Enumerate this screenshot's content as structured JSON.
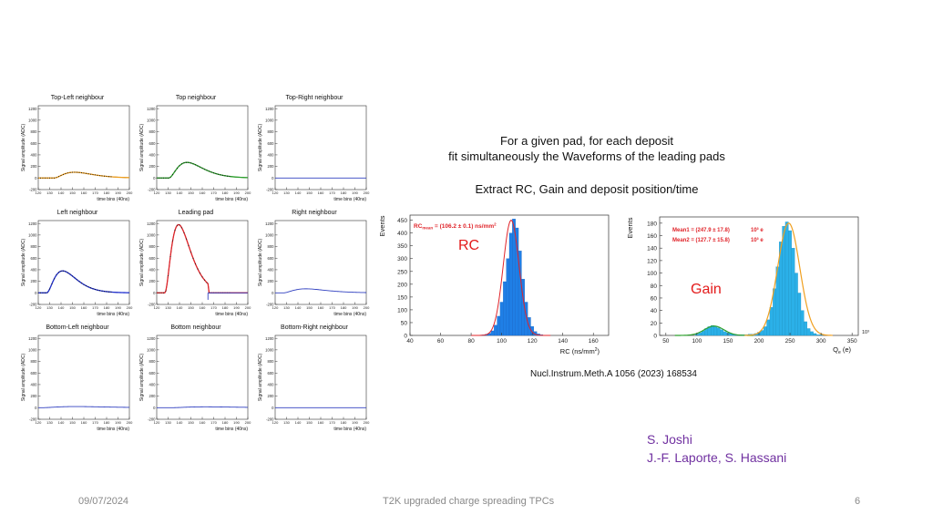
{
  "description": {
    "line1": "For a given pad, for each deposit",
    "line2": "fit simultaneously the Waveforms of the leading pads",
    "line3": "Extract  RC, Gain and deposit position/time"
  },
  "reference": "Nucl.Instrum.Meth.A 1056 (2023) 168534",
  "authors": {
    "line1": "S. Joshi",
    "line2": "J.-F. Laporte, S. Hassani"
  },
  "footer": {
    "date": "09/07/2024",
    "title": "T2K upgraded charge spreading TPCs",
    "page": "6"
  },
  "colors": {
    "rc_fill": "#1f7fe6",
    "gain_fill": "#2bb0e8",
    "fit_red": "#e0242a",
    "fit_orange": "#f0a020",
    "author": "#7030a0"
  },
  "chart_data": [
    {
      "type": "line",
      "layout": "3x3 grid of waveform panels",
      "xlabel": "time bins (40ns)",
      "ylabel": "Signal amplitude (ADC)",
      "xlim": [
        120,
        200
      ],
      "ylim": [
        -200,
        1250
      ],
      "x_ticks": [
        "120",
        "130",
        "140",
        "150",
        "160",
        "170",
        "180",
        "190",
        "200"
      ],
      "y_ticks": [
        "-200",
        "0",
        "200",
        "400",
        "600",
        "800",
        "1000",
        "1200"
      ],
      "panels": [
        {
          "title": "Top-Left neighbour",
          "fit_color": "#f0a020",
          "peak": 100,
          "peak_x": 150,
          "width": 18
        },
        {
          "title": "Top neighbour",
          "fit_color": "#2ca02c",
          "peak": 270,
          "peak_x": 145,
          "width": 16
        },
        {
          "title": "Top-Right neighbour",
          "fit_color": "#3040c0",
          "peak": 0,
          "peak_x": 150,
          "width": 10
        },
        {
          "title": "Left neighbour",
          "fit_color": "#2030d0",
          "peak": 380,
          "peak_x": 140,
          "width": 14
        },
        {
          "title": "Leading pad",
          "fit_color": "#e0242a",
          "peak": 1180,
          "peak_x": 138,
          "width": 12
        },
        {
          "title": "Right neighbour",
          "fit_color": "#3040c0",
          "peak": 70,
          "peak_x": 145,
          "width": 20
        },
        {
          "title": "Bottom-Left neighbour",
          "fit_color": "#3040c0",
          "peak": 20,
          "peak_x": 150,
          "width": 30
        },
        {
          "title": "Bottom neighbour",
          "fit_color": "#3040c0",
          "peak": 15,
          "peak_x": 160,
          "width": 30
        },
        {
          "title": "Bottom-Right neighbour",
          "fit_color": "#3040c0",
          "peak": 0,
          "peak_x": 150,
          "width": 10
        }
      ]
    },
    {
      "type": "bar",
      "name": "RC distribution",
      "overlay_label": "RC",
      "legend_text": "RC",
      "legend_sub": "mean",
      "legend_value": " = (106.2 ± 0.1) ns/mm",
      "legend_sup": "2",
      "ylabel": "Events",
      "xlabel": "RC (ns/mm",
      "xlabel_sup": "2",
      "xlabel_end": ")",
      "xlim": [
        40,
        170
      ],
      "ylim": [
        0,
        470
      ],
      "x_ticks": [
        "40",
        "60",
        "80",
        "100",
        "120",
        "140",
        "160"
      ],
      "y_ticks": [
        "0",
        "50",
        "100",
        "150",
        "200",
        "250",
        "300",
        "350",
        "400",
        "450"
      ],
      "x": [
        88,
        90,
        92,
        94,
        96,
        98,
        100,
        102,
        104,
        106,
        108,
        110,
        112,
        114,
        116,
        118,
        120,
        122,
        124,
        126,
        128
      ],
      "values": [
        2,
        4,
        8,
        18,
        40,
        75,
        130,
        210,
        300,
        400,
        455,
        420,
        330,
        220,
        130,
        70,
        35,
        15,
        6,
        3,
        1
      ],
      "fit": {
        "mean": 106.2,
        "sigma": 5.2,
        "amp": 450,
        "color": "#e0242a"
      }
    },
    {
      "type": "bar",
      "name": "Gain distribution",
      "overlay_label": "Gain",
      "legend": [
        {
          "label": "Mean1 = (247.9 ± 17.8)",
          "exp": "10³ e"
        },
        {
          "label": "Mean2 = (127.7 ± 15.8)",
          "exp": "10³ e"
        }
      ],
      "ylabel": "Events",
      "xlabel": "Q",
      "xlabel_sub": "e",
      "xlabel_end": " (e)",
      "x_multiplier": "10³",
      "xlim": [
        40,
        360
      ],
      "ylim": [
        0,
        190
      ],
      "x_ticks": [
        "50",
        "100",
        "150",
        "200",
        "250",
        "300",
        "350"
      ],
      "y_ticks": [
        "0",
        "20",
        "40",
        "60",
        "80",
        "100",
        "120",
        "140",
        "160",
        "180"
      ],
      "x": [
        100,
        105,
        110,
        115,
        120,
        125,
        130,
        135,
        140,
        145,
        150,
        155,
        160,
        165,
        170,
        175,
        180,
        185,
        190,
        195,
        200,
        205,
        210,
        215,
        220,
        225,
        230,
        235,
        240,
        245,
        250,
        255,
        260,
        265,
        270,
        275,
        280,
        285,
        290,
        295,
        300
      ],
      "values": [
        2,
        4,
        7,
        11,
        14,
        16,
        15,
        12,
        9,
        6,
        4,
        3,
        2,
        1,
        1,
        1,
        1,
        2,
        2,
        3,
        5,
        8,
        14,
        25,
        45,
        75,
        110,
        150,
        175,
        182,
        168,
        140,
        100,
        68,
        40,
        22,
        11,
        6,
        3,
        1,
        1
      ],
      "fits": [
        {
          "mean": 127.7,
          "sigma": 15.8,
          "amp": 15,
          "color": "#2ca02c"
        },
        {
          "mean": 247.9,
          "sigma": 17.8,
          "amp": 180,
          "color": "#f0a020"
        }
      ]
    }
  ]
}
